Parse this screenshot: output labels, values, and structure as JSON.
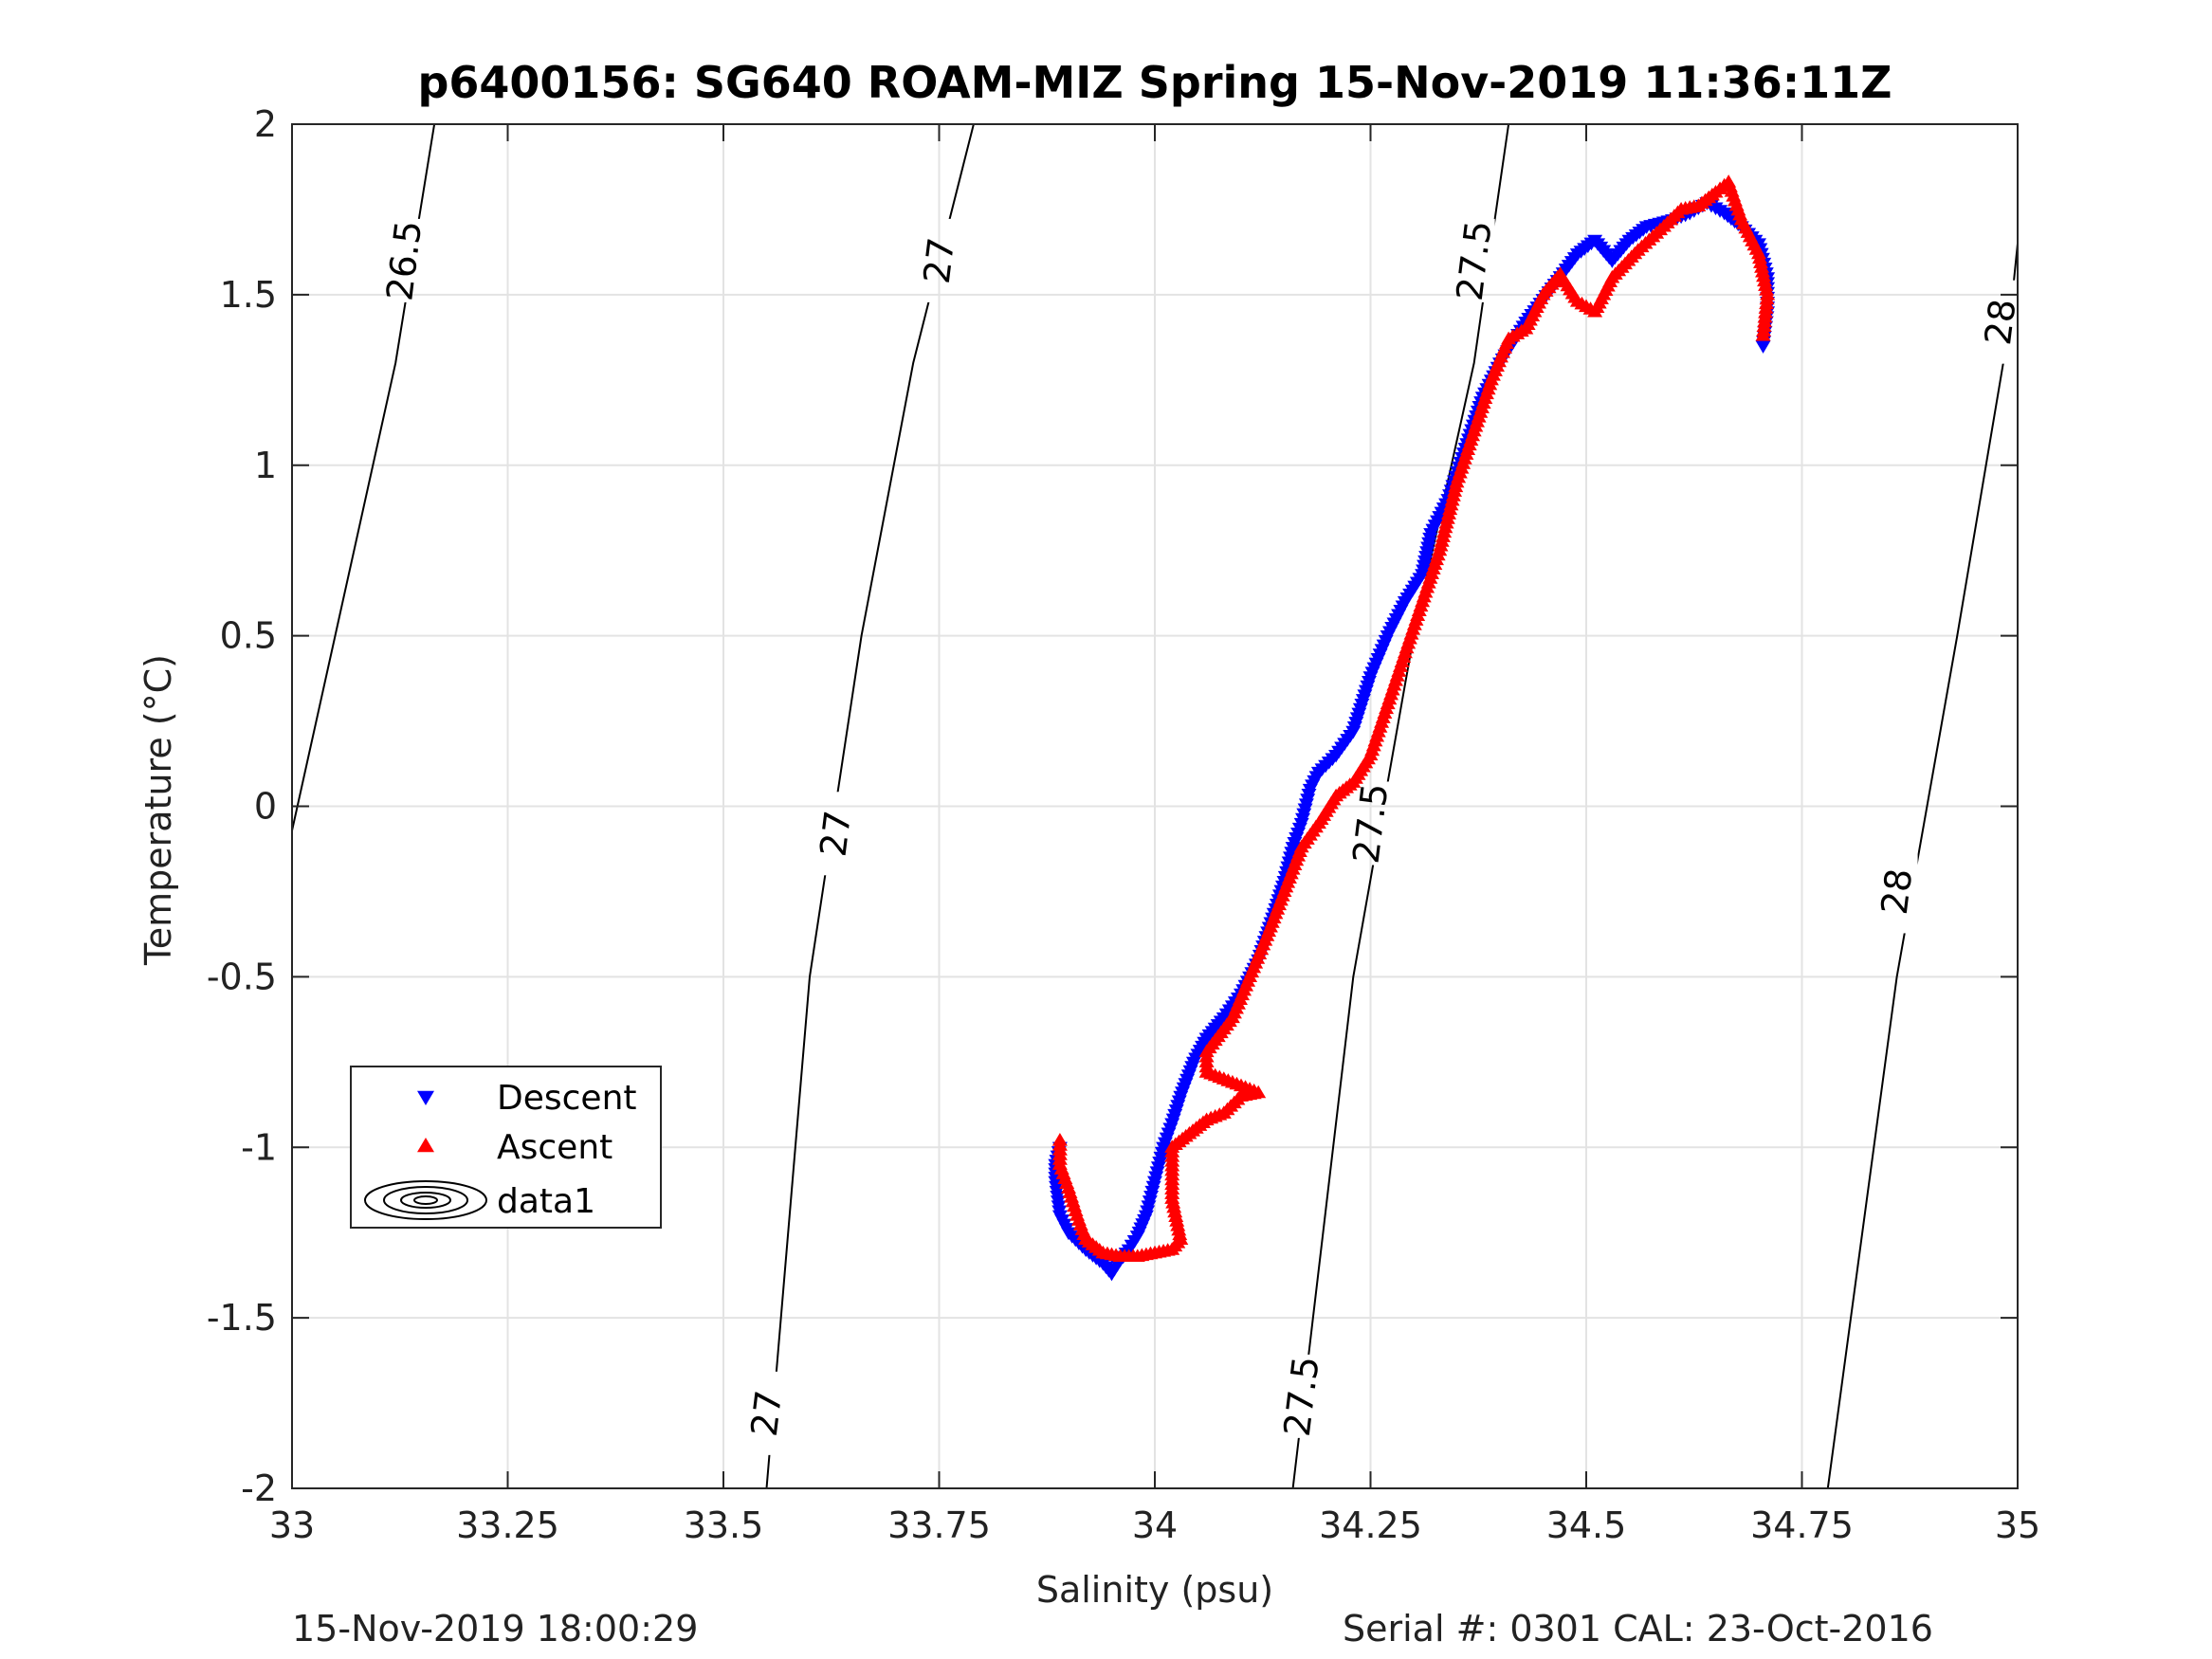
{
  "chart_data": {
    "type": "scatter",
    "title": "p6400156: SG640 ROAM-MIZ Spring 15-Nov-2019 11:36:11Z",
    "xlabel": "Salinity (psu)",
    "ylabel": "Temperature (°C)",
    "xlim": [
      33,
      35
    ],
    "ylim": [
      -2,
      2
    ],
    "xticks": [
      33,
      33.25,
      33.5,
      33.75,
      34,
      34.25,
      34.5,
      34.75,
      35
    ],
    "xtick_labels": [
      "33",
      "33.25",
      "33.5",
      "33.75",
      "34",
      "34.25",
      "34.5",
      "34.75",
      "35"
    ],
    "yticks": [
      2,
      1.5,
      1,
      0.5,
      0,
      -0.5,
      -1,
      -1.5,
      -2
    ],
    "ytick_labels": [
      "2",
      "1.5",
      "1",
      "0.5",
      "0",
      "-0.5",
      "-1",
      "-1.5",
      "-2"
    ],
    "grid": true,
    "legend_position": "bottom-left",
    "series": [
      {
        "name": "Descent",
        "marker": "triangle-down",
        "color": "#0000ff",
        "path": [
          [
            33.89,
            -1.0
          ],
          [
            33.885,
            -1.05
          ],
          [
            33.885,
            -1.1
          ],
          [
            33.89,
            -1.2
          ],
          [
            33.9,
            -1.25
          ],
          [
            33.92,
            -1.3
          ],
          [
            33.94,
            -1.34
          ],
          [
            33.95,
            -1.37
          ],
          [
            33.96,
            -1.33
          ],
          [
            33.97,
            -1.3
          ],
          [
            33.98,
            -1.26
          ],
          [
            33.99,
            -1.2
          ],
          [
            34.0,
            -1.1
          ],
          [
            34.01,
            -1.0
          ],
          [
            34.02,
            -0.93
          ],
          [
            34.03,
            -0.85
          ],
          [
            34.045,
            -0.75
          ],
          [
            34.06,
            -0.68
          ],
          [
            34.08,
            -0.62
          ],
          [
            34.1,
            -0.55
          ],
          [
            34.12,
            -0.45
          ],
          [
            34.14,
            -0.3
          ],
          [
            34.15,
            -0.22
          ],
          [
            34.16,
            -0.12
          ],
          [
            34.17,
            -0.05
          ],
          [
            34.18,
            0.05
          ],
          [
            34.19,
            0.1
          ],
          [
            34.21,
            0.15
          ],
          [
            34.23,
            0.22
          ],
          [
            34.25,
            0.38
          ],
          [
            34.27,
            0.5
          ],
          [
            34.29,
            0.6
          ],
          [
            34.31,
            0.68
          ],
          [
            34.32,
            0.8
          ],
          [
            34.34,
            0.9
          ],
          [
            34.36,
            1.05
          ],
          [
            34.38,
            1.2
          ],
          [
            34.4,
            1.3
          ],
          [
            34.43,
            1.42
          ],
          [
            34.46,
            1.52
          ],
          [
            34.49,
            1.62
          ],
          [
            34.51,
            1.66
          ],
          [
            34.53,
            1.6
          ],
          [
            34.55,
            1.66
          ],
          [
            34.57,
            1.7
          ],
          [
            34.6,
            1.72
          ],
          [
            34.62,
            1.74
          ],
          [
            34.64,
            1.77
          ],
          [
            34.66,
            1.74
          ],
          [
            34.68,
            1.7
          ],
          [
            34.7,
            1.65
          ],
          [
            34.71,
            1.55
          ],
          [
            34.71,
            1.45
          ],
          [
            34.705,
            1.35
          ]
        ]
      },
      {
        "name": "Ascent",
        "marker": "triangle-up",
        "color": "#ff0000",
        "path": [
          [
            33.89,
            -0.98
          ],
          [
            33.89,
            -1.05
          ],
          [
            33.9,
            -1.12
          ],
          [
            33.91,
            -1.2
          ],
          [
            33.92,
            -1.27
          ],
          [
            33.94,
            -1.31
          ],
          [
            33.96,
            -1.32
          ],
          [
            33.98,
            -1.32
          ],
          [
            34.0,
            -1.31
          ],
          [
            34.02,
            -1.3
          ],
          [
            34.03,
            -1.27
          ],
          [
            34.02,
            -1.15
          ],
          [
            34.02,
            -1.0
          ],
          [
            34.04,
            -0.96
          ],
          [
            34.06,
            -0.92
          ],
          [
            34.08,
            -0.9
          ],
          [
            34.1,
            -0.85
          ],
          [
            34.12,
            -0.84
          ],
          [
            34.1,
            -0.82
          ],
          [
            34.08,
            -0.8
          ],
          [
            34.06,
            -0.78
          ],
          [
            34.06,
            -0.72
          ],
          [
            34.09,
            -0.62
          ],
          [
            34.11,
            -0.5
          ],
          [
            34.13,
            -0.38
          ],
          [
            34.15,
            -0.25
          ],
          [
            34.17,
            -0.12
          ],
          [
            34.19,
            -0.05
          ],
          [
            34.21,
            0.03
          ],
          [
            34.23,
            0.07
          ],
          [
            34.25,
            0.15
          ],
          [
            34.27,
            0.3
          ],
          [
            34.29,
            0.45
          ],
          [
            34.31,
            0.6
          ],
          [
            34.33,
            0.75
          ],
          [
            34.35,
            0.95
          ],
          [
            34.37,
            1.1
          ],
          [
            34.39,
            1.25
          ],
          [
            34.41,
            1.37
          ],
          [
            34.43,
            1.4
          ],
          [
            34.45,
            1.5
          ],
          [
            34.47,
            1.56
          ],
          [
            34.49,
            1.48
          ],
          [
            34.51,
            1.45
          ],
          [
            34.53,
            1.55
          ],
          [
            34.56,
            1.63
          ],
          [
            34.59,
            1.7
          ],
          [
            34.61,
            1.75
          ],
          [
            34.63,
            1.76
          ],
          [
            34.65,
            1.8
          ],
          [
            34.665,
            1.83
          ],
          [
            34.68,
            1.72
          ],
          [
            34.7,
            1.62
          ],
          [
            34.71,
            1.5
          ],
          [
            34.705,
            1.38
          ]
        ]
      },
      {
        "name": "data1",
        "type": "contour",
        "color": "#000000",
        "levels": [
          {
            "value": "26.5",
            "points": [
              [
                32.98,
                -0.3
              ],
              [
                33.05,
                0.5
              ],
              [
                33.12,
                1.3
              ],
              [
                33.165,
                2.0
              ]
            ]
          },
          {
            "value": "27",
            "points": [
              [
                33.55,
                -2.0
              ],
              [
                33.6,
                -0.5
              ],
              [
                33.66,
                0.5
              ],
              [
                33.72,
                1.3
              ],
              [
                33.79,
                2.0
              ]
            ]
          },
          {
            "value": "27.5",
            "points": [
              [
                34.16,
                -2.0
              ],
              [
                34.23,
                -0.5
              ],
              [
                34.3,
                0.5
              ],
              [
                34.37,
                1.3
              ],
              [
                34.41,
                2.0
              ]
            ]
          },
          {
            "value": "28",
            "points": [
              [
                34.78,
                -2.0
              ],
              [
                34.86,
                -0.5
              ],
              [
                34.93,
                0.5
              ],
              [
                34.99,
                1.4
              ],
              [
                35.0,
                1.65
              ]
            ]
          }
        ],
        "level_labels": [
          {
            "text": "26.5",
            "s": 33.13,
            "t": 1.6
          },
          {
            "text": "27",
            "s": 33.75,
            "t": 1.6
          },
          {
            "text": "27",
            "s": 33.63,
            "t": -0.08
          },
          {
            "text": "27",
            "s": 33.55,
            "t": -1.78
          },
          {
            "text": "27.5",
            "s": 34.37,
            "t": 1.6
          },
          {
            "text": "27.5",
            "s": 34.25,
            "t": -0.05
          },
          {
            "text": "27.5",
            "s": 34.17,
            "t": -1.73
          },
          {
            "text": "28",
            "s": 34.98,
            "t": 1.42
          },
          {
            "text": "28",
            "s": 34.86,
            "t": -0.25
          }
        ]
      }
    ]
  },
  "footer": {
    "timestamp": "15-Nov-2019 18:00:29",
    "serial_cal": "Serial #: 0301  CAL: 23-Oct-2016"
  }
}
